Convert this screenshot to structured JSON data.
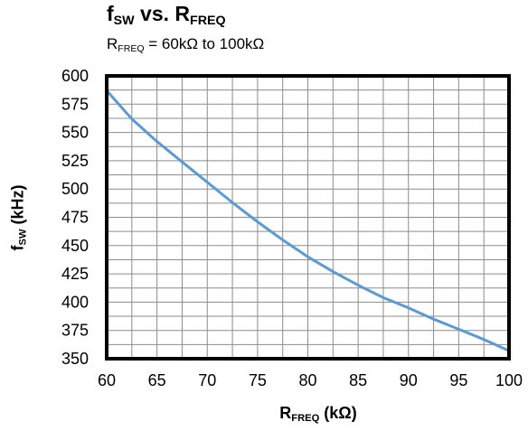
{
  "chart_data": {
    "type": "line",
    "title": {
      "main": "f",
      "main_sub": "SW",
      "rest": " vs. R",
      "rest_sub": "FREQ"
    },
    "subtitle": {
      "prefix": "R",
      "prefix_sub": "FREQ",
      "rest": " = 60kΩ to 100kΩ"
    },
    "xlabel": {
      "main": "R",
      "sub": "FREQ",
      "rest": "  (kΩ)"
    },
    "ylabel": {
      "main": "f",
      "sub": "SW",
      "rest": " (kHz)"
    },
    "xlim": [
      60,
      100
    ],
    "ylim": [
      350,
      600
    ],
    "x_ticks": [
      60,
      65,
      70,
      75,
      80,
      85,
      90,
      95,
      100
    ],
    "y_ticks": [
      350,
      375,
      400,
      425,
      450,
      475,
      500,
      525,
      550,
      575,
      600
    ],
    "x_minor_step": 2.5,
    "y_minor_step": 12.5,
    "grid": true,
    "series": [
      {
        "color": "#5b9bd5",
        "x": [
          60,
          62.5,
          65,
          67.5,
          70,
          72.5,
          75,
          77.5,
          80,
          82.5,
          85,
          87.5,
          90,
          92.5,
          95,
          97.5,
          100
        ],
        "y": [
          587,
          562,
          542,
          524,
          506,
          488,
          471,
          455,
          440,
          427,
          415,
          404,
          395,
          385,
          376,
          367,
          357
        ]
      }
    ]
  }
}
